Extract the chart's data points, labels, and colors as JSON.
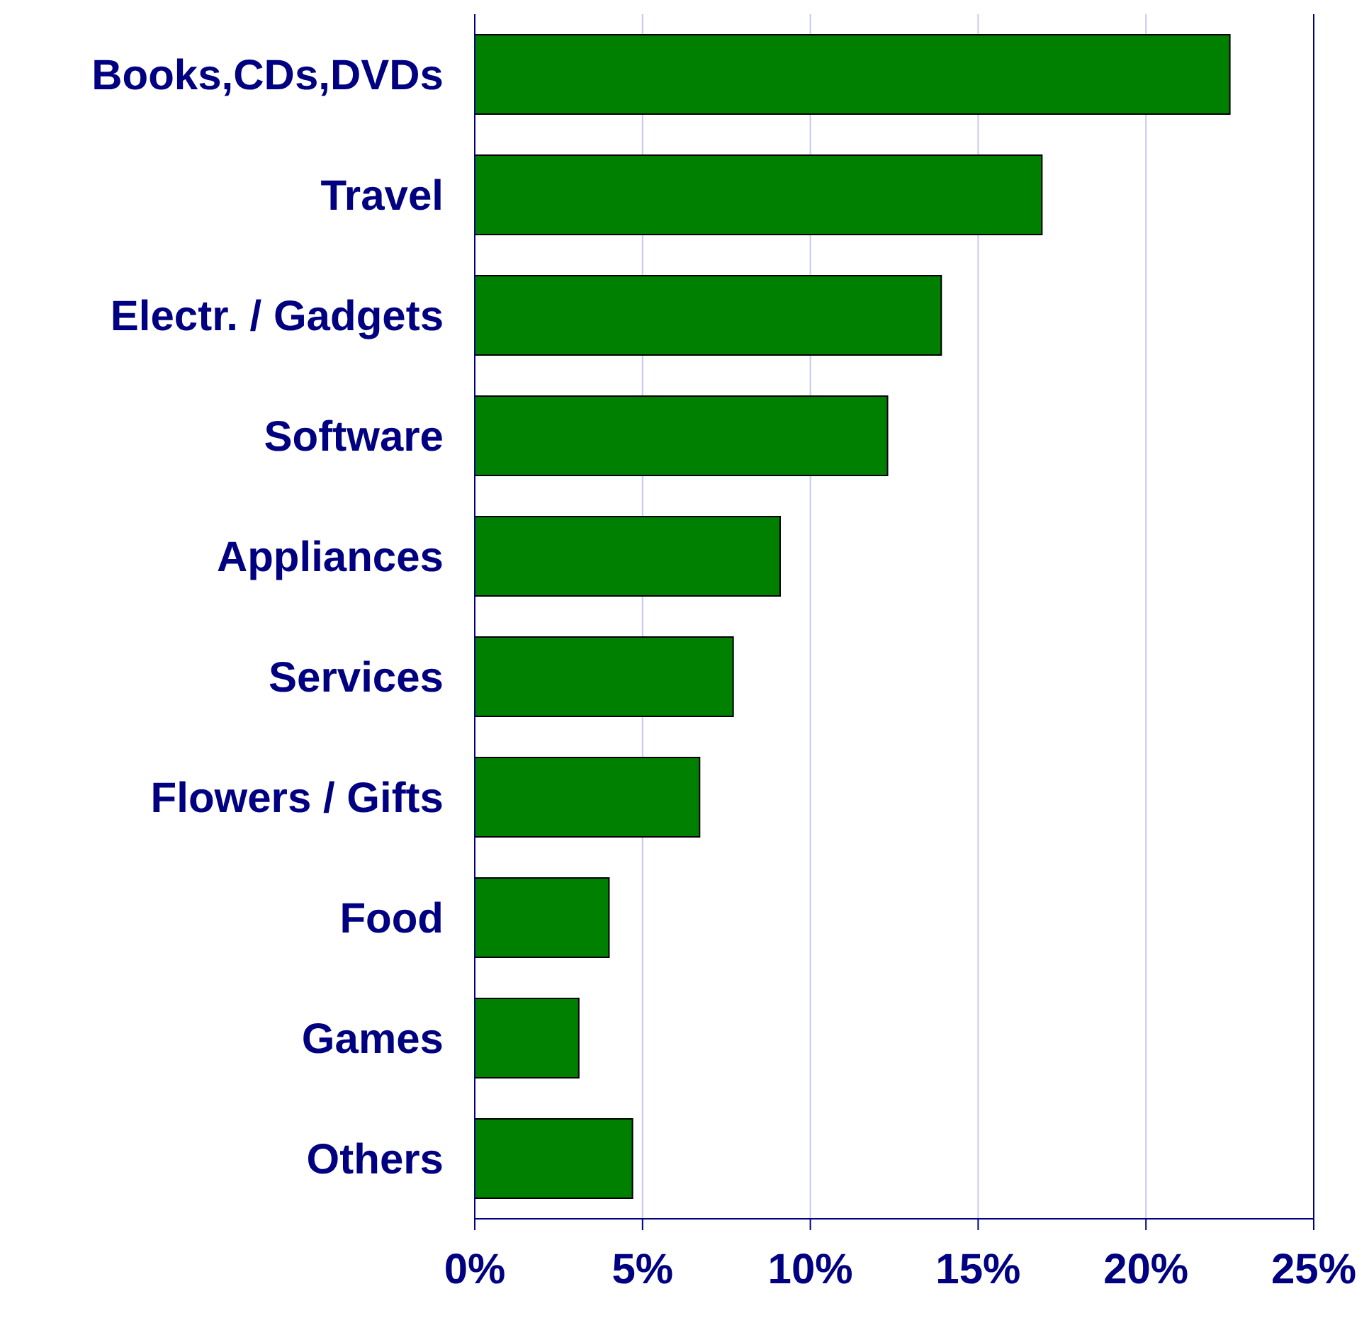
{
  "chart_data": {
    "type": "bar",
    "orientation": "horizontal",
    "categories": [
      "Books,CDs,DVDs",
      "Travel",
      "Electr. / Gadgets",
      "Software",
      "Appliances",
      "Services",
      "Flowers / Gifts",
      "Food",
      "Games",
      "Others"
    ],
    "values": [
      22.5,
      16.9,
      13.9,
      12.3,
      9.1,
      7.7,
      6.7,
      4.0,
      3.1,
      4.7
    ],
    "color": "#008000",
    "xlim": [
      0,
      25
    ],
    "xticks": [
      {
        "value": 0,
        "label": "0%"
      },
      {
        "value": 5,
        "label": "5%"
      },
      {
        "value": 10,
        "label": "10%"
      },
      {
        "value": 15,
        "label": "15%"
      },
      {
        "value": 20,
        "label": "20%"
      },
      {
        "value": 25,
        "label": "25%"
      }
    ],
    "grid": "x"
  }
}
